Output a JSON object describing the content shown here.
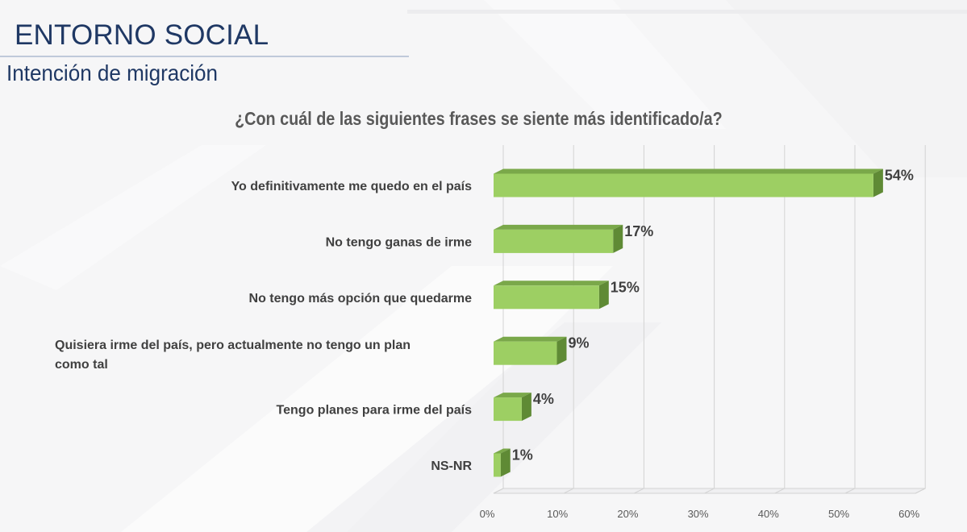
{
  "slide": {
    "title": "ENTORNO SOCIAL",
    "subtitle": "Intención de migración"
  },
  "chart_data": {
    "type": "bar",
    "orientation": "horizontal",
    "style": "3d",
    "title": "¿Con cuál de las siguientes frases se siente más identificado/a?",
    "categories": [
      "Yo definitivamente me quedo en el país",
      "No tengo ganas de irme",
      "No tengo más opción que quedarme",
      "Quisiera irme del país, pero actualmente no tengo un plan como tal",
      "Tengo planes para irme del país",
      "NS-NR"
    ],
    "values": [
      54,
      17,
      15,
      9,
      4,
      1
    ],
    "data_labels": [
      "54%",
      "17%",
      "15%",
      "9%",
      "4%",
      "1%"
    ],
    "xlim": [
      0,
      60
    ],
    "xticks": [
      0,
      10,
      20,
      30,
      40,
      50,
      60
    ],
    "xtick_labels": [
      "0%",
      "10%",
      "20%",
      "30%",
      "40%",
      "50%",
      "60%"
    ],
    "grid": true,
    "legend": "none",
    "colors": {
      "bar_front": "#9dcf63",
      "bar_top": "#7aa84a",
      "bar_side": "#5f8a35",
      "label_text": "#404040",
      "title_text": "#1f3864",
      "question_text": "#595959",
      "grid_line": "#d3d3d3"
    }
  }
}
